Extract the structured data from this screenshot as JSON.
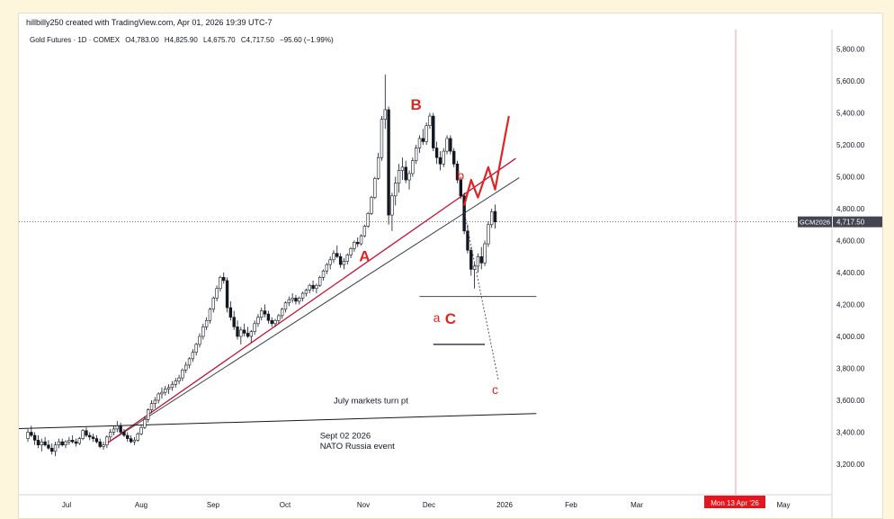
{
  "attribution": "hillbilly250 created with TradingView.com, Apr 01, 2026 19:39 UTC-7",
  "legend": {
    "instrument": "Gold Futures · 1D · COMEX",
    "O": "4,783.00",
    "H": "4,825.90",
    "L": "4,675.70",
    "C": "4,717.50",
    "change": "−95.60 (−1.99%)",
    "prefix_o": "O",
    "prefix_h": "H",
    "prefix_l": "L",
    "prefix_c": "C"
  },
  "colors": {
    "up": "#ffffff",
    "down": "#131722",
    "outline": "#131722",
    "annotation": "#e02424",
    "crosshair": "#f5a0a8",
    "price_tag": "#434651",
    "date_tag": "#e8141c"
  },
  "chart_data": {
    "type": "candlestick",
    "symbol_tag": "GCM2026",
    "last_price": 4717.5,
    "ylim": [
      3050,
      5900
    ],
    "ytick_labels": [
      "3,200.00",
      "3,400.00",
      "3,600.00",
      "3,800.00",
      "4,000.00",
      "4,200.00",
      "4,400.00",
      "4,600.00",
      "4,800.00",
      "5,000.00",
      "5,200.00",
      "5,400.00",
      "5,600.00",
      "5,800.00"
    ],
    "x_labels": [
      "Jul",
      "Aug",
      "Sep",
      "Oct",
      "Nov",
      "Dec",
      "2026",
      "Feb",
      "Mar",
      "May"
    ],
    "crosshair_date": "Mon 13 Apr '26",
    "candles": [
      [
        3360,
        3420,
        3340,
        3400
      ],
      [
        3400,
        3440,
        3370,
        3380
      ],
      [
        3380,
        3400,
        3320,
        3350
      ],
      [
        3350,
        3380,
        3300,
        3320
      ],
      [
        3320,
        3360,
        3280,
        3340
      ],
      [
        3340,
        3370,
        3310,
        3320
      ],
      [
        3320,
        3350,
        3290,
        3300
      ],
      [
        3300,
        3330,
        3260,
        3280
      ],
      [
        3280,
        3340,
        3250,
        3320
      ],
      [
        3320,
        3360,
        3300,
        3340
      ],
      [
        3340,
        3360,
        3310,
        3320
      ],
      [
        3320,
        3350,
        3300,
        3340
      ],
      [
        3340,
        3370,
        3320,
        3350
      ],
      [
        3350,
        3380,
        3330,
        3340
      ],
      [
        3340,
        3360,
        3310,
        3330
      ],
      [
        3330,
        3370,
        3320,
        3360
      ],
      [
        3360,
        3420,
        3350,
        3410
      ],
      [
        3410,
        3430,
        3370,
        3380
      ],
      [
        3380,
        3400,
        3350,
        3370
      ],
      [
        3370,
        3390,
        3340,
        3360
      ],
      [
        3360,
        3380,
        3330,
        3340
      ],
      [
        3340,
        3360,
        3300,
        3310
      ],
      [
        3310,
        3340,
        3290,
        3320
      ],
      [
        3320,
        3380,
        3300,
        3370
      ],
      [
        3370,
        3420,
        3350,
        3400
      ],
      [
        3400,
        3440,
        3380,
        3420
      ],
      [
        3420,
        3470,
        3400,
        3440
      ],
      [
        3440,
        3460,
        3390,
        3400
      ],
      [
        3400,
        3420,
        3370,
        3380
      ],
      [
        3380,
        3400,
        3340,
        3360
      ],
      [
        3360,
        3380,
        3330,
        3340
      ],
      [
        3340,
        3370,
        3320,
        3350
      ],
      [
        3350,
        3400,
        3340,
        3390
      ],
      [
        3390,
        3440,
        3380,
        3430
      ],
      [
        3430,
        3500,
        3420,
        3480
      ],
      [
        3480,
        3550,
        3460,
        3540
      ],
      [
        3540,
        3600,
        3520,
        3580
      ],
      [
        3580,
        3620,
        3550,
        3600
      ],
      [
        3600,
        3650,
        3580,
        3640
      ],
      [
        3640,
        3680,
        3610,
        3650
      ],
      [
        3650,
        3690,
        3630,
        3670
      ],
      [
        3670,
        3700,
        3640,
        3680
      ],
      [
        3680,
        3720,
        3660,
        3700
      ],
      [
        3700,
        3740,
        3680,
        3720
      ],
      [
        3720,
        3760,
        3700,
        3740
      ],
      [
        3740,
        3800,
        3720,
        3790
      ],
      [
        3790,
        3840,
        3770,
        3820
      ],
      [
        3820,
        3870,
        3800,
        3860
      ],
      [
        3860,
        3920,
        3840,
        3900
      ],
      [
        3900,
        3960,
        3880,
        3950
      ],
      [
        3950,
        4020,
        3930,
        4000
      ],
      [
        4000,
        4080,
        3980,
        4060
      ],
      [
        4060,
        4120,
        4040,
        4100
      ],
      [
        4100,
        4180,
        4080,
        4170
      ],
      [
        4170,
        4250,
        4150,
        4240
      ],
      [
        4240,
        4320,
        4220,
        4300
      ],
      [
        4300,
        4380,
        4280,
        4370
      ],
      [
        4370,
        4400,
        4330,
        4350
      ],
      [
        4350,
        4370,
        4150,
        4180
      ],
      [
        4180,
        4220,
        4100,
        4120
      ],
      [
        4120,
        4160,
        4040,
        4060
      ],
      [
        4060,
        4100,
        3980,
        4000
      ],
      [
        4000,
        4060,
        3950,
        4040
      ],
      [
        4040,
        4080,
        4000,
        4020
      ],
      [
        4020,
        4060,
        3990,
        4000
      ],
      [
        4000,
        4040,
        3960,
        4030
      ],
      [
        4030,
        4100,
        4010,
        4080
      ],
      [
        4080,
        4140,
        4060,
        4120
      ],
      [
        4120,
        4180,
        4100,
        4160
      ],
      [
        4160,
        4200,
        4120,
        4140
      ],
      [
        4140,
        4160,
        4080,
        4100
      ],
      [
        4100,
        4120,
        4060,
        4080
      ],
      [
        4080,
        4110,
        4060,
        4100
      ],
      [
        4100,
        4140,
        4080,
        4130
      ],
      [
        4130,
        4180,
        4110,
        4170
      ],
      [
        4170,
        4220,
        4150,
        4210
      ],
      [
        4210,
        4250,
        4190,
        4230
      ],
      [
        4230,
        4270,
        4210,
        4240
      ],
      [
        4240,
        4260,
        4200,
        4220
      ],
      [
        4220,
        4250,
        4200,
        4240
      ],
      [
        4240,
        4280,
        4220,
        4270
      ],
      [
        4270,
        4300,
        4250,
        4290
      ],
      [
        4290,
        4330,
        4270,
        4320
      ],
      [
        4320,
        4350,
        4280,
        4300
      ],
      [
        4300,
        4330,
        4270,
        4320
      ],
      [
        4320,
        4380,
        4310,
        4370
      ],
      [
        4370,
        4420,
        4350,
        4410
      ],
      [
        4410,
        4460,
        4390,
        4450
      ],
      [
        4450,
        4500,
        4420,
        4480
      ],
      [
        4480,
        4540,
        4460,
        4520
      ],
      [
        4520,
        4570,
        4490,
        4500
      ],
      [
        4500,
        4520,
        4430,
        4450
      ],
      [
        4450,
        4490,
        4420,
        4470
      ],
      [
        4470,
        4520,
        4450,
        4510
      ],
      [
        4510,
        4560,
        4490,
        4550
      ],
      [
        4550,
        4600,
        4530,
        4590
      ],
      [
        4590,
        4620,
        4560,
        4580
      ],
      [
        4580,
        4640,
        4570,
        4630
      ],
      [
        4630,
        4700,
        4620,
        4690
      ],
      [
        4690,
        4780,
        4680,
        4770
      ],
      [
        4770,
        4880,
        4760,
        4870
      ],
      [
        4870,
        5000,
        4860,
        4990
      ],
      [
        4990,
        5150,
        4980,
        5120
      ],
      [
        5120,
        5380,
        5100,
        5360
      ],
      [
        5360,
        5640,
        5300,
        5420
      ],
      [
        5420,
        5440,
        4700,
        4760
      ],
      [
        4760,
        4900,
        4660,
        4880
      ],
      [
        4880,
        5000,
        4820,
        4960
      ],
      [
        4960,
        5080,
        4900,
        5040
      ],
      [
        5040,
        5120,
        4980,
        5060
      ],
      [
        5060,
        5100,
        4960,
        4980
      ],
      [
        4980,
        5040,
        4920,
        5020
      ],
      [
        5020,
        5120,
        5000,
        5100
      ],
      [
        5100,
        5200,
        5080,
        5180
      ],
      [
        5180,
        5260,
        5150,
        5240
      ],
      [
        5240,
        5300,
        5200,
        5220
      ],
      [
        5220,
        5340,
        5200,
        5320
      ],
      [
        5320,
        5400,
        5300,
        5380
      ],
      [
        5380,
        5400,
        5160,
        5180
      ],
      [
        5180,
        5220,
        5080,
        5120
      ],
      [
        5120,
        5160,
        5040,
        5080
      ],
      [
        5080,
        5180,
        5060,
        5160
      ],
      [
        5160,
        5260,
        5140,
        5240
      ],
      [
        5240,
        5260,
        5140,
        5160
      ],
      [
        5160,
        5180,
        5060,
        5080
      ],
      [
        5080,
        5100,
        4960,
        4980
      ],
      [
        4980,
        5000,
        4860,
        4880
      ],
      [
        4880,
        4900,
        4640,
        4660
      ],
      [
        4660,
        4700,
        4520,
        4540
      ],
      [
        4540,
        4560,
        4380,
        4420
      ],
      [
        4420,
        4460,
        4300,
        4440
      ],
      [
        4440,
        4520,
        4400,
        4500
      ],
      [
        4500,
        4560,
        4420,
        4460
      ],
      [
        4460,
        4600,
        4440,
        4580
      ],
      [
        4580,
        4720,
        4560,
        4700
      ],
      [
        4700,
        4800,
        4680,
        4780
      ],
      [
        4783,
        4825.9,
        4675.7,
        4717.5
      ]
    ],
    "trendlines": [
      {
        "name": "black-support-line",
        "from": [
          23,
          3330
        ],
        "to": [
          143,
          4994
        ]
      },
      {
        "name": "red-support-line",
        "from": [
          23,
          3330
        ],
        "to": [
          142,
          5115
        ]
      },
      {
        "name": "long-horizontal-line",
        "from": [
          -7,
          3420
        ],
        "to": [
          148,
          3517
        ]
      },
      {
        "name": "support-4250-line",
        "from": [
          114,
          4250
        ],
        "to": [
          148,
          4250
        ]
      },
      {
        "name": "target-3950-line",
        "from": [
          118,
          3950
        ],
        "to": [
          133,
          3950
        ]
      }
    ],
    "projection_red": [
      [
        127,
        4820
      ],
      [
        129,
        4980
      ],
      [
        131,
        4870
      ],
      [
        134,
        5060
      ],
      [
        136,
        4920
      ],
      [
        140,
        5380
      ]
    ],
    "projection_dotted": [
      [
        127,
        4780
      ],
      [
        137,
        3720
      ]
    ],
    "wave_labels": [
      {
        "text": "A",
        "x": 98,
        "y": 4470,
        "style": "big"
      },
      {
        "text": "B",
        "x": 113,
        "y": 5420,
        "style": "big"
      },
      {
        "text": "C",
        "x": 123,
        "y": 4080,
        "style": "big"
      },
      {
        "text": "a",
        "x": 119,
        "y": 4090,
        "style": "small"
      },
      {
        "text": "b",
        "x": 126,
        "y": 4980,
        "style": "small"
      },
      {
        "text": "c",
        "x": 136,
        "y": 3640,
        "style": "small"
      }
    ],
    "annotations": [
      {
        "text": "July markets turn pt",
        "x": 89,
        "y": 3580
      },
      {
        "text": "Sept 02 2026",
        "x": 85,
        "y": 3360
      },
      {
        "text": "NATO Russia event",
        "x": 85,
        "y": 3295
      }
    ]
  }
}
